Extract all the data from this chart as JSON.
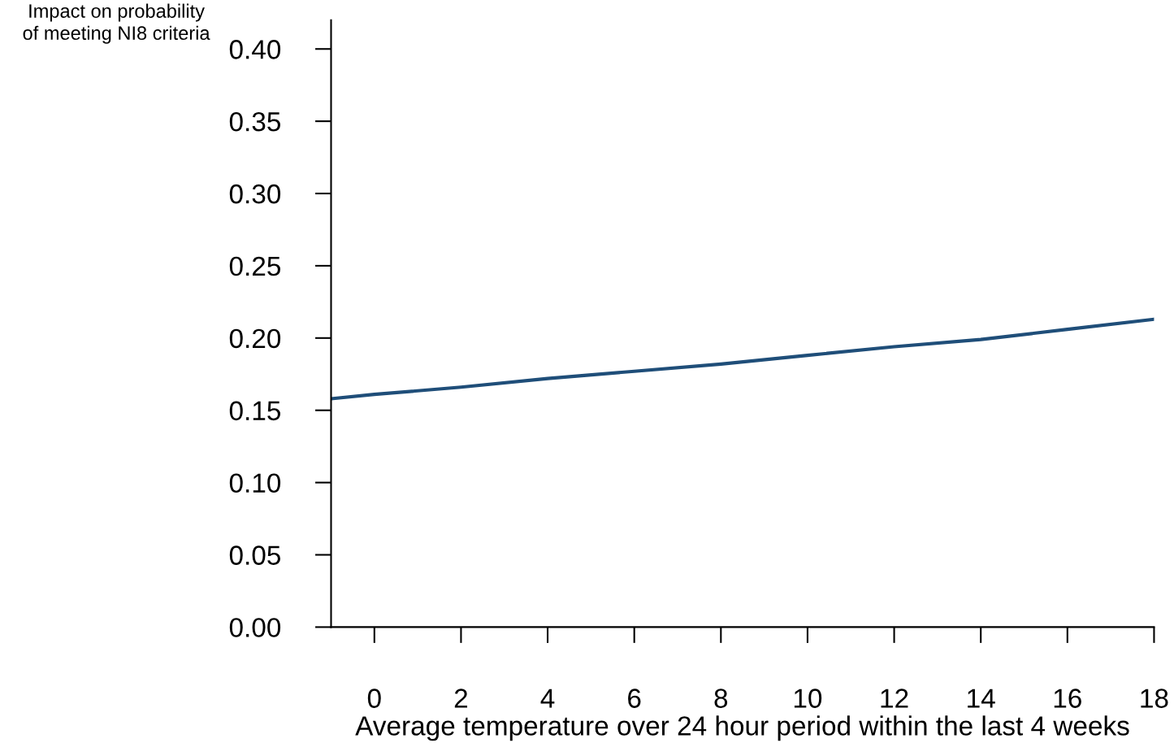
{
  "chart_data": {
    "type": "line",
    "xlabel": "Average temperature over 24 hour period within the last 4 weeks",
    "ylabel": "Impact on probability\nof meeting NI8 criteria",
    "x": [
      -1,
      0,
      2,
      4,
      6,
      8,
      10,
      12,
      14,
      16,
      18
    ],
    "series": [
      {
        "color": "#1f4e79",
        "values": [
          0.158,
          0.161,
          0.166,
          0.172,
          0.177,
          0.182,
          0.188,
          0.194,
          0.199,
          0.206,
          0.213
        ]
      }
    ],
    "xlim": [
      -1,
      18
    ],
    "xticks": [
      0,
      2,
      4,
      6,
      8,
      10,
      12,
      14,
      16,
      18
    ],
    "ylim": [
      0,
      0.42
    ],
    "yticks": [
      {
        "value": 0,
        "label": "0.00"
      },
      {
        "value": 0.05,
        "label": "0.05"
      },
      {
        "value": 0.1,
        "label": "0.10"
      },
      {
        "value": 0.15,
        "label": "0.15"
      },
      {
        "value": 0.2,
        "label": "0.20"
      },
      {
        "value": 0.25,
        "label": "0.25"
      },
      {
        "value": 0.3,
        "label": "0.30"
      },
      {
        "value": 0.35,
        "label": "0.35"
      },
      {
        "value": 0.4,
        "label": "0.40"
      }
    ],
    "grid": false,
    "legend": false,
    "marker": "none",
    "line_style": "solid"
  }
}
